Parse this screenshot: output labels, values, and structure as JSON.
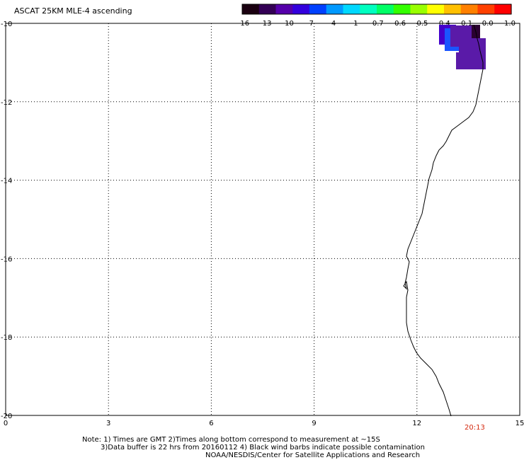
{
  "title": "ASCAT 25KM MLE-4 ascending",
  "colorbar": {
    "labels": [
      "-16",
      "-13",
      "-10",
      "-7",
      "-4",
      "-1",
      "-0.7",
      "-0.6",
      "-0.5",
      "-0.4",
      "-0.1",
      "0.0",
      "1.0"
    ],
    "colors": [
      "#1a0010",
      "#330055",
      "#5500aa",
      "#3300dd",
      "#0040ff",
      "#0099ff",
      "#00d8ff",
      "#00ffc0",
      "#00ff66",
      "#33ff00",
      "#99ff00",
      "#ffff00",
      "#ffc000",
      "#ff8000",
      "#ff4000",
      "#ff0000"
    ]
  },
  "axes": {
    "x_ticks": [
      "0",
      "3",
      "6",
      "9",
      "12",
      "15"
    ],
    "y_ticks": [
      "-10",
      "-12",
      "-14",
      "-16",
      "-18",
      "-20"
    ],
    "lon_range": [
      0,
      15
    ],
    "lat_range": [
      -20,
      -10
    ],
    "grid": "dotted"
  },
  "data_cells": [
    {
      "color": "#4400cc"
    },
    {
      "color": "#1a55ff"
    },
    {
      "color": "#5a1aa8"
    },
    {
      "color": "#2a0030"
    },
    {
      "color": "#5a1aa8"
    },
    {
      "color": "#5a1aa8"
    }
  ],
  "timestamp": "20:13",
  "notes": [
    "Note: 1) Times are GMT 2)Times along bottom correspond to measurement at ~15S",
    "3)Data buffer is 22 hrs from 20160112 4) Black wind barbs indicate possible contamination",
    "NOAA/NESDIS/Center for Satellite Applications and Research"
  ]
}
